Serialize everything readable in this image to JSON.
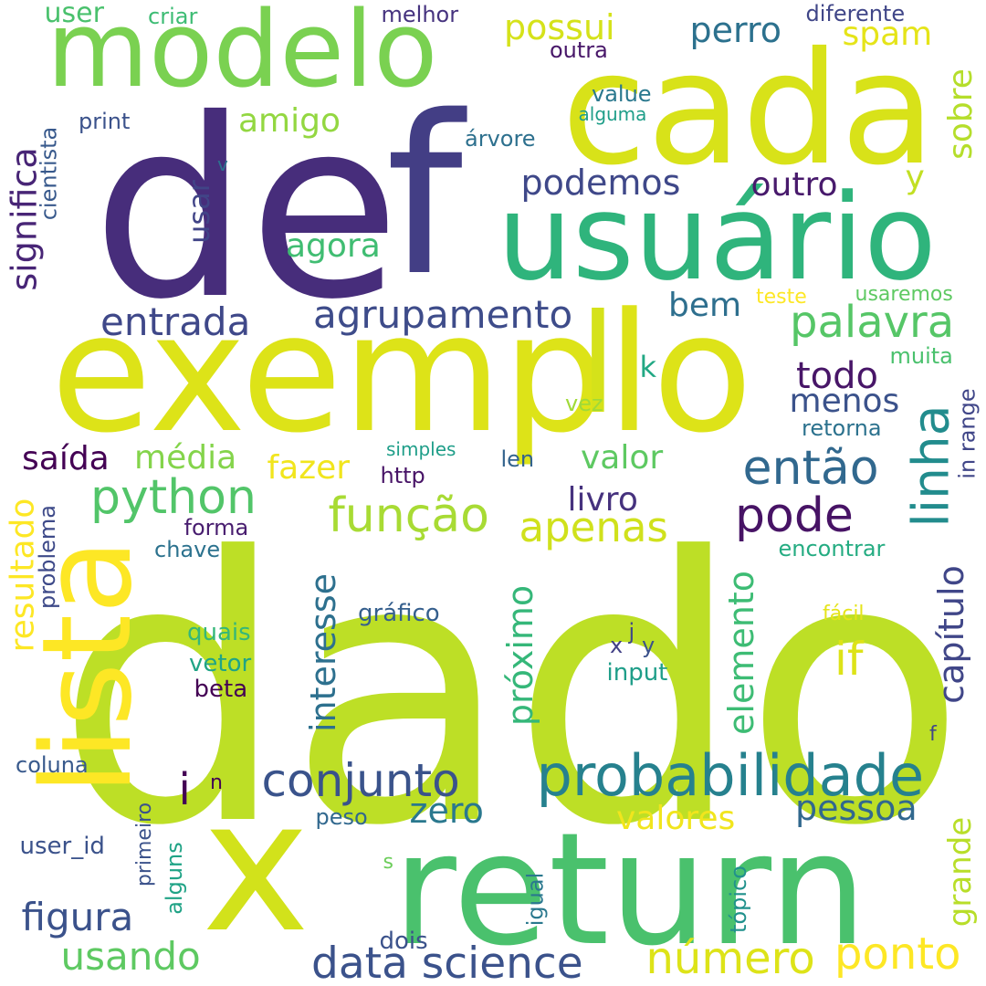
{
  "words": [
    {
      "text": "dado",
      "color": "#bddf26"
    },
    {
      "text": "de",
      "color": "#472d7b"
    },
    {
      "text": "exemplo",
      "color": "#dde318"
    },
    {
      "text": "cada",
      "color": "#d8e219"
    },
    {
      "text": "return",
      "color": "#4ac16d"
    },
    {
      "text": "x",
      "color": "#d2e21b"
    },
    {
      "text": "f",
      "color": "#433e85"
    },
    {
      "text": "usuário",
      "color": "#2fb47c"
    },
    {
      "text": "modelo",
      "color": "#7ad151"
    },
    {
      "text": "lista",
      "color": "#fde725"
    },
    {
      "text": "l",
      "color": "#d5e21a"
    },
    {
      "text": "probabilidade",
      "color": "#26818e"
    },
    {
      "text": "data science",
      "color": "#3b528b"
    },
    {
      "text": "conjunto",
      "color": "#3a538b"
    },
    {
      "text": "python",
      "color": "#52c569"
    },
    {
      "text": "função",
      "color": "#a8db34"
    },
    {
      "text": "agrupamento",
      "color": "#3e4c8a"
    },
    {
      "text": "entrada",
      "color": "#3f4889"
    },
    {
      "text": "número",
      "color": "#dde318"
    },
    {
      "text": "ponto",
      "color": "#fde725"
    },
    {
      "text": "então",
      "color": "#31688e"
    },
    {
      "text": "linha",
      "color": "#228c8d"
    },
    {
      "text": "palavra",
      "color": "#56c667"
    },
    {
      "text": "pode",
      "color": "#471365"
    },
    {
      "text": "apenas",
      "color": "#d0e11c"
    },
    {
      "text": "figura",
      "color": "#3b528b"
    },
    {
      "text": "usando",
      "color": "#5ec962"
    },
    {
      "text": "valores",
      "color": "#f1e51d"
    },
    {
      "text": "pessoa",
      "color": "#31688e"
    },
    {
      "text": "zero",
      "color": "#2a788e"
    },
    {
      "text": "significa",
      "color": "#482576"
    },
    {
      "text": "resultado",
      "color": "#fde725"
    },
    {
      "text": "livro",
      "color": "#46327e"
    },
    {
      "text": "valor",
      "color": "#5ec962"
    },
    {
      "text": "média",
      "color": "#84d44b"
    },
    {
      "text": "saída",
      "color": "#440154"
    },
    {
      "text": "fazer",
      "color": "#f1e51d"
    },
    {
      "text": "todo",
      "color": "#481668"
    },
    {
      "text": "menos",
      "color": "#3b528b"
    },
    {
      "text": "if",
      "color": "#dde318"
    },
    {
      "text": "capítulo",
      "color": "#404688"
    },
    {
      "text": "possui",
      "color": "#d5e21a"
    },
    {
      "text": "perro",
      "color": "#2c718e"
    },
    {
      "text": "spam",
      "color": "#e5e419"
    },
    {
      "text": "sobre",
      "color": "#b5de2b"
    },
    {
      "text": "podemos",
      "color": "#3f4889"
    },
    {
      "text": "outro",
      "color": "#481a6c"
    },
    {
      "text": "amigo",
      "color": "#93d741"
    },
    {
      "text": "agora",
      "color": "#40bd72"
    },
    {
      "text": "bem",
      "color": "#2e6f8e"
    },
    {
      "text": "y",
      "color": "#c2df23"
    },
    {
      "text": "interesse",
      "color": "#2d708e"
    },
    {
      "text": "próximo",
      "color": "#35b779"
    },
    {
      "text": "elemento",
      "color": "#3dbc74"
    },
    {
      "text": "grande",
      "color": "#b8de29"
    },
    {
      "text": "i",
      "color": "#440154"
    },
    {
      "text": "usar",
      "color": "#414487"
    },
    {
      "text": "user",
      "color": "#4ac16d"
    },
    {
      "text": "criar",
      "color": "#3dbc74"
    },
    {
      "text": "melhor",
      "color": "#46337f"
    },
    {
      "text": "diferente",
      "color": "#404688"
    },
    {
      "text": "outra",
      "color": "#481769"
    },
    {
      "text": "value",
      "color": "#2a788e"
    },
    {
      "text": "alguma",
      "color": "#1f9e89"
    },
    {
      "text": "árvore",
      "color": "#2d708e"
    },
    {
      "text": "print",
      "color": "#3b528b"
    },
    {
      "text": "cientista",
      "color": "#38598c"
    },
    {
      "text": "v",
      "color": "#2c728e"
    },
    {
      "text": "teste",
      "color": "#fde725"
    },
    {
      "text": "usaremos",
      "color": "#5ec962"
    },
    {
      "text": "k",
      "color": "#22a884"
    },
    {
      "text": "muita",
      "color": "#4ac16d"
    },
    {
      "text": "vez",
      "color": "#a0da39"
    },
    {
      "text": "retorna",
      "color": "#2c728e"
    },
    {
      "text": "in range",
      "color": "#404688"
    },
    {
      "text": "simples",
      "color": "#1f9e89"
    },
    {
      "text": "len",
      "color": "#33638d"
    },
    {
      "text": "http",
      "color": "#481467"
    },
    {
      "text": "forma",
      "color": "#481d6f"
    },
    {
      "text": "chave",
      "color": "#2c728e"
    },
    {
      "text": "encontrar",
      "color": "#25ac82"
    },
    {
      "text": "problema",
      "color": "#3e4a89"
    },
    {
      "text": "gráfico",
      "color": "#355f8d"
    },
    {
      "text": "quais",
      "color": "#35b779"
    },
    {
      "text": "vetor",
      "color": "#20a486"
    },
    {
      "text": "beta",
      "color": "#440154"
    },
    {
      "text": "x",
      "color": "#424086"
    },
    {
      "text": "j",
      "color": "#3f4889"
    },
    {
      "text": "y",
      "color": "#3b528b"
    },
    {
      "text": "input",
      "color": "#1f9e89"
    },
    {
      "text": "fácil",
      "color": "#e5e419"
    },
    {
      "text": "f",
      "color": "#404688"
    },
    {
      "text": "coluna",
      "color": "#38598c"
    },
    {
      "text": "n",
      "color": "#440154"
    },
    {
      "text": "peso",
      "color": "#31688e"
    },
    {
      "text": "primeiro",
      "color": "#3b528b"
    },
    {
      "text": "user_id",
      "color": "#3b528b"
    },
    {
      "text": "alguns",
      "color": "#20a386"
    },
    {
      "text": "s",
      "color": "#6ccd5a"
    },
    {
      "text": "igual",
      "color": "#2a788e"
    },
    {
      "text": "tópico",
      "color": "#21918c"
    },
    {
      "text": "dois",
      "color": "#3b528b"
    }
  ]
}
